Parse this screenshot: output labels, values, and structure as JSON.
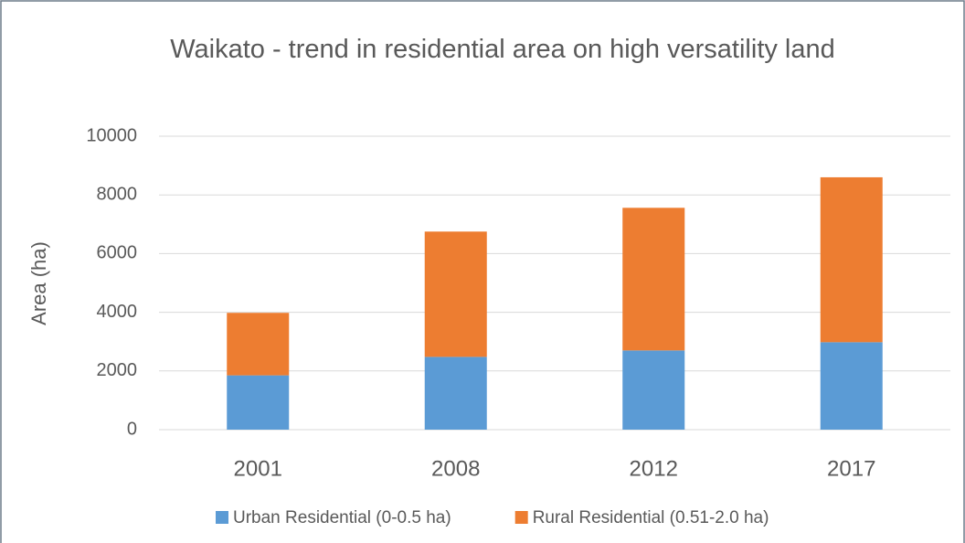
{
  "chart_data": {
    "type": "stacked_bar",
    "title": "Waikato - trend in residential area on high versatility land",
    "ylabel": "Area (ha)",
    "categories": [
      "2001",
      "2008",
      "2012",
      "2017"
    ],
    "series": [
      {
        "name": "Urban Residential (0-0.5 ha)",
        "color": "#5b9bd5",
        "values": [
          1850,
          2480,
          2700,
          2980
        ]
      },
      {
        "name": "Rural Residential (0.51-2.0 ha)",
        "color": "#ed7d31",
        "values": [
          2130,
          4270,
          4860,
          5620
        ]
      }
    ],
    "ylim": [
      0,
      10000
    ],
    "yticks": [
      0,
      2000,
      4000,
      6000,
      8000,
      10000
    ],
    "grid": true,
    "legend": "bottom"
  }
}
